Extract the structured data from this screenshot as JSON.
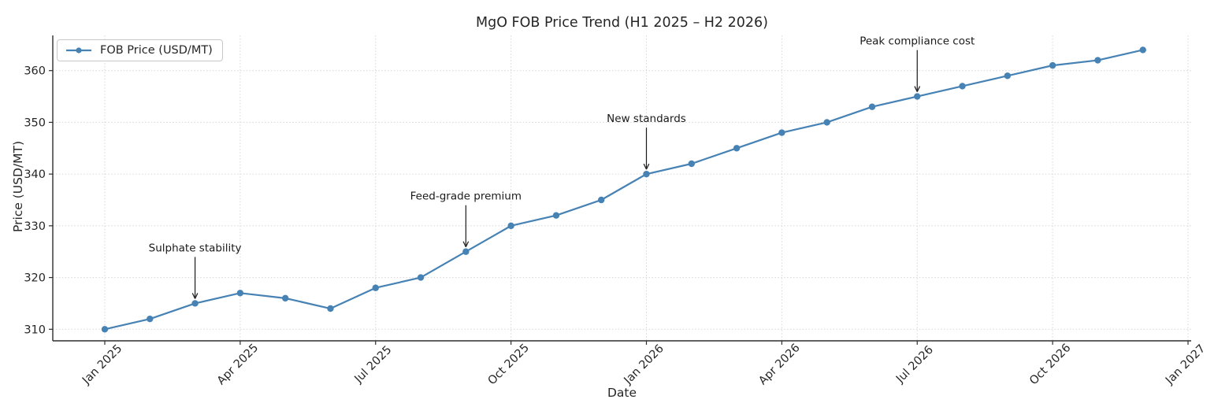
{
  "chart_data": {
    "type": "line",
    "title": "MgO FOB Price Trend (H1 2025 – H2 2026)",
    "xlabel": "Date",
    "ylabel": "Price (USD/MT)",
    "grid": "dotted",
    "legend_position": "upper left",
    "x": [
      "Jan 2025",
      "Feb 2025",
      "Mar 2025",
      "Apr 2025",
      "May 2025",
      "Jun 2025",
      "Jul 2025",
      "Aug 2025",
      "Sep 2025",
      "Oct 2025",
      "Nov 2025",
      "Dec 2025",
      "Jan 2026",
      "Feb 2026",
      "Mar 2026",
      "Apr 2026",
      "May 2026",
      "Jun 2026",
      "Jul 2026",
      "Aug 2026",
      "Sep 2026",
      "Oct 2026",
      "Nov 2026",
      "Dec 2026"
    ],
    "series": [
      {
        "name": "FOB Price (USD/MT)",
        "color": "#4682b4",
        "values": [
          310,
          312,
          315,
          317,
          316,
          314,
          318,
          320,
          325,
          330,
          332,
          335,
          340,
          342,
          345,
          348,
          350,
          353,
          355,
          357,
          359,
          361,
          362,
          364
        ]
      }
    ],
    "yticks": [
      310,
      320,
      330,
      340,
      350,
      360
    ],
    "ylim": [
      308,
      367
    ],
    "xticks": {
      "labels": [
        "Jan 2025",
        "Apr 2025",
        "Jul 2025",
        "Oct 2025",
        "Jan 2026",
        "Apr 2026",
        "Jul 2026",
        "Oct 2026",
        "Jan 2027"
      ],
      "month_index": [
        0,
        3,
        6,
        9,
        12,
        15,
        18,
        21,
        24
      ]
    },
    "annotations": [
      {
        "label": "Sulphate stability",
        "x": "Mar 2025",
        "y": 315
      },
      {
        "label": "Feed-grade premium",
        "x": "Sep 2025",
        "y": 325
      },
      {
        "label": "New standards",
        "x": "Jan 2026",
        "y": 340
      },
      {
        "label": "Peak compliance cost",
        "x": "Jul 2026",
        "y": 355
      }
    ]
  },
  "colors": {
    "series": "#4682b4",
    "grid": "#d6d6d6",
    "spine": "#2e2e2e",
    "text": "#262626",
    "annotation": "#1a1a1a",
    "legend_border": "#c9c9c9"
  }
}
